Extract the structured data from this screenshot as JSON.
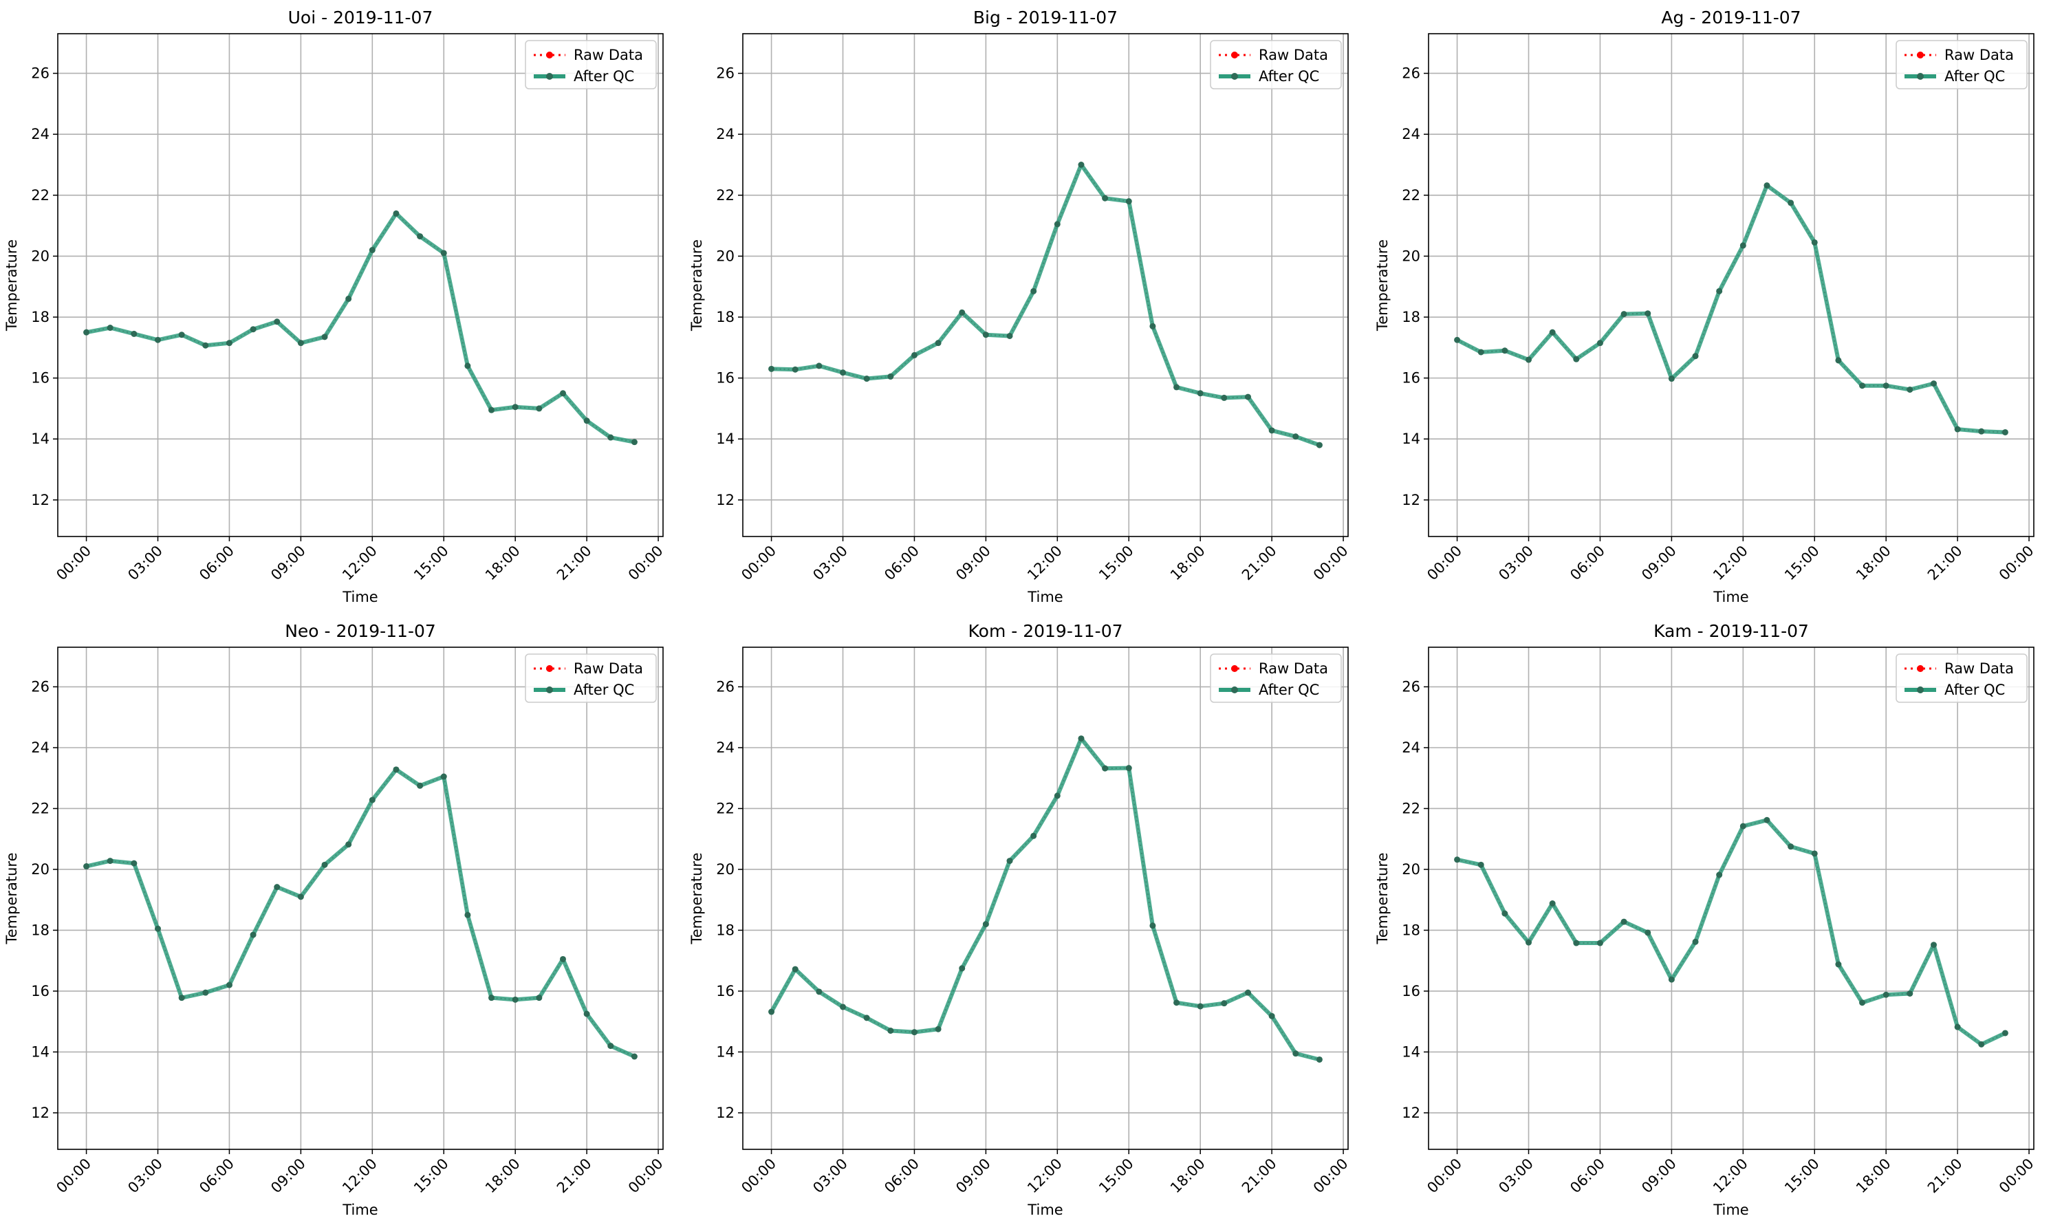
{
  "figure": {
    "legend_entries": [
      "Raw Data",
      "After QC"
    ],
    "legend_position": "top-right",
    "grid": true,
    "colors": {
      "raw": "#ff0000",
      "qc": "#2e9c7c",
      "qc_marker": "#2e6b57",
      "grid": "#b0b0b0",
      "axes": "#000000"
    }
  },
  "chart_data": [
    {
      "type": "line",
      "title": "Uoi - 2019-11-07",
      "xlabel": "Time",
      "ylabel": "Temperature",
      "x": [
        "00:00",
        "01:00",
        "02:00",
        "03:00",
        "04:00",
        "05:00",
        "06:00",
        "07:00",
        "08:00",
        "09:00",
        "10:00",
        "11:00",
        "12:00",
        "13:00",
        "14:00",
        "15:00",
        "16:00",
        "17:00",
        "18:00",
        "19:00",
        "20:00",
        "21:00",
        "22:00",
        "23:00"
      ],
      "xticks": [
        "00:00",
        "03:00",
        "06:00",
        "09:00",
        "12:00",
        "15:00",
        "18:00",
        "21:00",
        "00:00"
      ],
      "yticks": [
        12,
        14,
        16,
        18,
        20,
        22,
        24,
        26
      ],
      "ylim": [
        10.8,
        27.3
      ],
      "series": [
        {
          "name": "Raw Data",
          "values": [
            17.5,
            17.65,
            17.45,
            17.25,
            17.42,
            17.07,
            17.15,
            17.6,
            17.85,
            17.15,
            17.35,
            18.6,
            20.2,
            21.4,
            20.65,
            20.1,
            16.4,
            14.95,
            15.05,
            15.0,
            15.5,
            14.6,
            14.05,
            13.9
          ]
        },
        {
          "name": "After QC",
          "values": [
            17.5,
            17.65,
            17.45,
            17.25,
            17.42,
            17.07,
            17.15,
            17.6,
            17.85,
            17.15,
            17.35,
            18.6,
            20.2,
            21.4,
            20.65,
            20.1,
            16.4,
            14.95,
            15.05,
            15.0,
            15.5,
            14.6,
            14.05,
            13.9
          ]
        }
      ]
    },
    {
      "type": "line",
      "title": "Big - 2019-11-07",
      "xlabel": "Time",
      "ylabel": "Temperature",
      "x": [
        "00:00",
        "01:00",
        "02:00",
        "03:00",
        "04:00",
        "05:00",
        "06:00",
        "07:00",
        "08:00",
        "09:00",
        "10:00",
        "11:00",
        "12:00",
        "13:00",
        "14:00",
        "15:00",
        "16:00",
        "17:00",
        "18:00",
        "19:00",
        "20:00",
        "21:00",
        "22:00",
        "23:00"
      ],
      "xticks": [
        "00:00",
        "03:00",
        "06:00",
        "09:00",
        "12:00",
        "15:00",
        "18:00",
        "21:00",
        "00:00"
      ],
      "yticks": [
        12,
        14,
        16,
        18,
        20,
        22,
        24,
        26
      ],
      "ylim": [
        10.8,
        27.3
      ],
      "series": [
        {
          "name": "Raw Data",
          "values": [
            16.3,
            16.28,
            16.4,
            16.18,
            15.98,
            16.05,
            16.75,
            17.15,
            18.15,
            17.42,
            17.38,
            18.85,
            21.05,
            23.0,
            21.9,
            21.8,
            17.7,
            15.7,
            15.5,
            15.35,
            15.38,
            14.28,
            14.08,
            13.8
          ]
        },
        {
          "name": "After QC",
          "values": [
            16.3,
            16.28,
            16.4,
            16.18,
            15.98,
            16.05,
            16.75,
            17.15,
            18.15,
            17.42,
            17.38,
            18.85,
            21.05,
            23.0,
            21.9,
            21.8,
            17.7,
            15.7,
            15.5,
            15.35,
            15.38,
            14.28,
            14.08,
            13.8
          ]
        }
      ]
    },
    {
      "type": "line",
      "title": "Ag - 2019-11-07",
      "xlabel": "Time",
      "ylabel": "Temperature",
      "x": [
        "00:00",
        "01:00",
        "02:00",
        "03:00",
        "04:00",
        "05:00",
        "06:00",
        "07:00",
        "08:00",
        "09:00",
        "10:00",
        "11:00",
        "12:00",
        "13:00",
        "14:00",
        "15:00",
        "16:00",
        "17:00",
        "18:00",
        "19:00",
        "20:00",
        "21:00",
        "22:00",
        "23:00"
      ],
      "xticks": [
        "00:00",
        "03:00",
        "06:00",
        "09:00",
        "12:00",
        "15:00",
        "18:00",
        "21:00",
        "00:00"
      ],
      "yticks": [
        12,
        14,
        16,
        18,
        20,
        22,
        24,
        26
      ],
      "ylim": [
        10.8,
        27.3
      ],
      "series": [
        {
          "name": "Raw Data",
          "values": [
            17.25,
            16.85,
            16.9,
            16.6,
            17.5,
            16.62,
            17.15,
            18.1,
            18.12,
            15.98,
            16.72,
            18.85,
            20.35,
            22.32,
            21.75,
            20.45,
            16.58,
            15.75,
            15.75,
            15.62,
            15.82,
            14.32,
            14.25,
            14.22
          ]
        },
        {
          "name": "After QC",
          "values": [
            17.25,
            16.85,
            16.9,
            16.6,
            17.5,
            16.62,
            17.15,
            18.1,
            18.12,
            15.98,
            16.72,
            18.85,
            20.35,
            22.32,
            21.75,
            20.45,
            16.58,
            15.75,
            15.75,
            15.62,
            15.82,
            14.32,
            14.25,
            14.22
          ]
        }
      ]
    },
    {
      "type": "line",
      "title": "Neo - 2019-11-07",
      "xlabel": "Time",
      "ylabel": "Temperature",
      "x": [
        "00:00",
        "01:00",
        "02:00",
        "03:00",
        "04:00",
        "05:00",
        "06:00",
        "07:00",
        "08:00",
        "09:00",
        "10:00",
        "11:00",
        "12:00",
        "13:00",
        "14:00",
        "15:00",
        "16:00",
        "17:00",
        "18:00",
        "19:00",
        "20:00",
        "21:00",
        "22:00",
        "23:00"
      ],
      "xticks": [
        "00:00",
        "03:00",
        "06:00",
        "09:00",
        "12:00",
        "15:00",
        "18:00",
        "21:00",
        "00:00"
      ],
      "yticks": [
        12,
        14,
        16,
        18,
        20,
        22,
        24,
        26
      ],
      "ylim": [
        10.8,
        27.3
      ],
      "series": [
        {
          "name": "Raw Data",
          "values": [
            20.1,
            20.28,
            20.2,
            18.05,
            15.78,
            15.95,
            16.2,
            17.85,
            19.42,
            19.1,
            20.15,
            20.82,
            22.28,
            23.28,
            22.75,
            23.05,
            18.5,
            15.78,
            15.72,
            15.78,
            17.05,
            15.25,
            14.2,
            13.85
          ]
        },
        {
          "name": "After QC",
          "values": [
            20.1,
            20.28,
            20.2,
            18.05,
            15.78,
            15.95,
            16.2,
            17.85,
            19.42,
            19.1,
            20.15,
            20.82,
            22.28,
            23.28,
            22.75,
            23.05,
            18.5,
            15.78,
            15.72,
            15.78,
            17.05,
            15.25,
            14.2,
            13.85
          ]
        }
      ]
    },
    {
      "type": "line",
      "title": "Kom - 2019-11-07",
      "xlabel": "Time",
      "ylabel": "Temperature",
      "x": [
        "00:00",
        "01:00",
        "02:00",
        "03:00",
        "04:00",
        "05:00",
        "06:00",
        "07:00",
        "08:00",
        "09:00",
        "10:00",
        "11:00",
        "12:00",
        "13:00",
        "14:00",
        "15:00",
        "16:00",
        "17:00",
        "18:00",
        "19:00",
        "20:00",
        "21:00",
        "22:00",
        "23:00"
      ],
      "xticks": [
        "00:00",
        "03:00",
        "06:00",
        "09:00",
        "12:00",
        "15:00",
        "18:00",
        "21:00",
        "00:00"
      ],
      "yticks": [
        12,
        14,
        16,
        18,
        20,
        22,
        24,
        26
      ],
      "ylim": [
        10.8,
        27.3
      ],
      "series": [
        {
          "name": "Raw Data",
          "values": [
            15.32,
            16.72,
            15.98,
            15.48,
            15.12,
            14.7,
            14.65,
            14.75,
            16.75,
            18.2,
            20.28,
            21.1,
            22.42,
            24.3,
            23.32,
            23.33,
            18.15,
            15.62,
            15.5,
            15.6,
            15.95,
            15.18,
            13.95,
            13.75
          ]
        },
        {
          "name": "After QC",
          "values": [
            15.32,
            16.72,
            15.98,
            15.48,
            15.12,
            14.7,
            14.65,
            14.75,
            16.75,
            18.2,
            20.28,
            21.1,
            22.42,
            24.3,
            23.32,
            23.33,
            18.15,
            15.62,
            15.5,
            15.6,
            15.95,
            15.18,
            13.95,
            13.75
          ]
        }
      ]
    },
    {
      "type": "line",
      "title": "Kam - 2019-11-07",
      "xlabel": "Time",
      "ylabel": "Temperature",
      "x": [
        "00:00",
        "01:00",
        "02:00",
        "03:00",
        "04:00",
        "05:00",
        "06:00",
        "07:00",
        "08:00",
        "09:00",
        "10:00",
        "11:00",
        "12:00",
        "13:00",
        "14:00",
        "15:00",
        "16:00",
        "17:00",
        "18:00",
        "19:00",
        "20:00",
        "21:00",
        "22:00",
        "23:00"
      ],
      "xticks": [
        "00:00",
        "03:00",
        "06:00",
        "09:00",
        "12:00",
        "15:00",
        "18:00",
        "21:00",
        "00:00"
      ],
      "yticks": [
        12,
        14,
        16,
        18,
        20,
        22,
        24,
        26
      ],
      "ylim": [
        10.8,
        27.3
      ],
      "series": [
        {
          "name": "Raw Data",
          "values": [
            20.32,
            20.15,
            18.55,
            17.6,
            18.88,
            17.58,
            17.58,
            18.28,
            17.92,
            16.38,
            17.62,
            19.82,
            21.42,
            21.62,
            20.75,
            20.52,
            16.88,
            15.62,
            15.88,
            15.92,
            17.52,
            14.82,
            14.25,
            14.62
          ]
        },
        {
          "name": "After QC",
          "values": [
            20.32,
            20.15,
            18.55,
            17.6,
            18.88,
            17.58,
            17.58,
            18.28,
            17.92,
            16.38,
            17.62,
            19.82,
            21.42,
            21.62,
            20.75,
            20.52,
            16.88,
            15.62,
            15.88,
            15.92,
            17.52,
            14.82,
            14.25,
            14.62
          ]
        }
      ]
    }
  ]
}
